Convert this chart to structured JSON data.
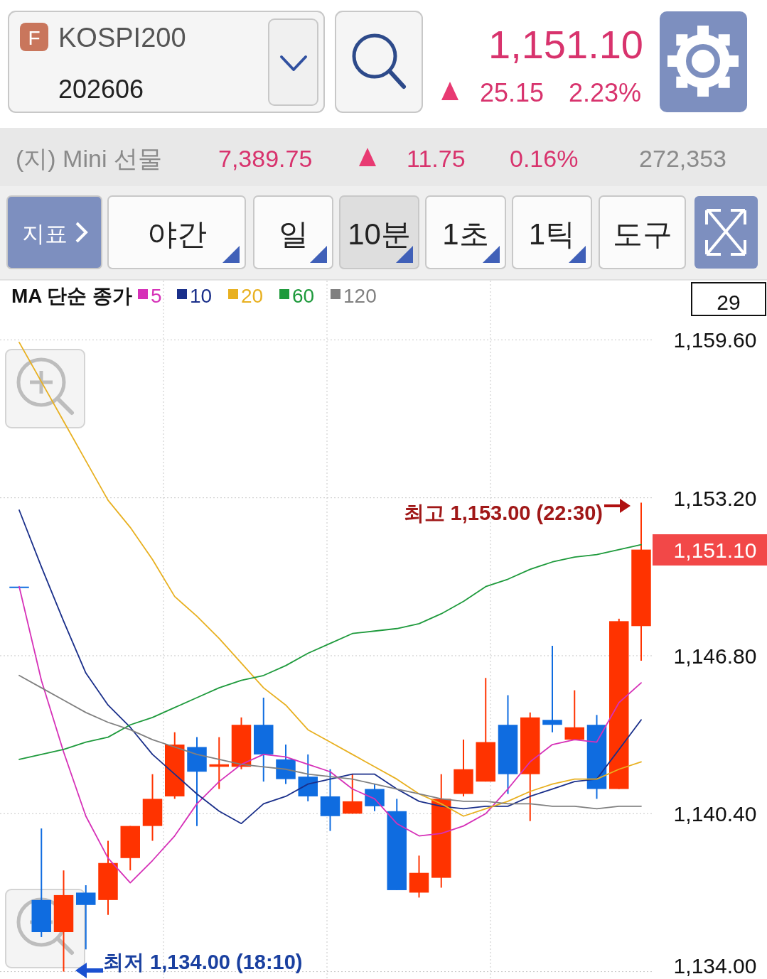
{
  "chart_data": {
    "type": "candlestick",
    "title": "KOSPI200",
    "subtitle": "202606",
    "categories": [
      null,
      null,
      null,
      null,
      null,
      null,
      null,
      null,
      null,
      null,
      null,
      null,
      null,
      null,
      null,
      null,
      null,
      null,
      null,
      null,
      null,
      null,
      null,
      null,
      null,
      null,
      null,
      null,
      null
    ],
    "ohlc": [
      [
        1149.6,
        1149.6,
        1149.6,
        1149.6
      ],
      [
        1136.9,
        1139.8,
        1135.4,
        1135.6
      ],
      [
        1135.6,
        1138.1,
        1134.0,
        1137.1
      ],
      [
        1137.2,
        1137.5,
        1134.9,
        1136.7
      ],
      [
        1136.9,
        1139.3,
        1136.3,
        1138.4
      ],
      [
        1138.6,
        1139.9,
        1138.1,
        1139.9
      ],
      [
        1139.9,
        1142.0,
        1139.3,
        1141.0
      ],
      [
        1141.1,
        1143.7,
        1141.0,
        1143.2
      ],
      [
        1143.1,
        1143.5,
        1139.9,
        1142.1
      ],
      [
        1142.3,
        1143.5,
        1141.4,
        1142.4
      ],
      [
        1142.3,
        1144.3,
        1142.2,
        1144.0
      ],
      [
        1144.0,
        1145.1,
        1141.7,
        1142.8
      ],
      [
        1142.6,
        1143.2,
        1141.6,
        1141.8
      ],
      [
        1141.9,
        1142.8,
        1140.9,
        1141.1
      ],
      [
        1141.1,
        1142.2,
        1139.7,
        1140.3
      ],
      [
        1140.4,
        1142.0,
        1140.4,
        1140.9
      ],
      [
        1141.4,
        1141.6,
        1140.5,
        1140.7
      ],
      [
        1140.5,
        1141.0,
        1137.3,
        1137.3
      ],
      [
        1137.2,
        1138.7,
        1137.0,
        1138.0
      ],
      [
        1137.8,
        1142.0,
        1137.4,
        1141.0
      ],
      [
        1141.2,
        1143.4,
        1141.1,
        1142.2
      ],
      [
        1141.7,
        1145.9,
        1141.7,
        1143.3
      ],
      [
        1144.0,
        1145.2,
        1141.2,
        1142.0
      ],
      [
        1142.0,
        1144.5,
        1140.1,
        1144.3
      ],
      [
        1144.2,
        1147.2,
        1143.7,
        1144.0
      ],
      [
        1143.4,
        1145.4,
        1143.4,
        1143.9
      ],
      [
        1144.0,
        1144.4,
        1141.0,
        1141.4
      ],
      [
        1141.4,
        1148.3,
        1141.4,
        1148.2
      ],
      [
        1148.0,
        1153.0,
        1146.6,
        1151.1
      ]
    ],
    "colors": [
      "#0f6ce0",
      "#0f6ce0",
      "#ff3300",
      "#0f6ce0",
      "#ff3300",
      "#ff3300",
      "#ff3300",
      "#ff3300",
      "#0f6ce0",
      "#ff3300",
      "#ff3300",
      "#0f6ce0",
      "#0f6ce0",
      "#0f6ce0",
      "#0f6ce0",
      "#ff3300",
      "#0f6ce0",
      "#0f6ce0",
      "#ff3300",
      "#ff3300",
      "#ff3300",
      "#ff3300",
      "#0f6ce0",
      "#ff3300",
      "#0f6ce0",
      "#ff3300",
      "#0f6ce0",
      "#ff3300",
      "#ff3300"
    ],
    "series": [
      {
        "type": "line",
        "name": "5",
        "color": "#d631b8",
        "values": [
          1149.6,
          1145.8,
          1142.9,
          1140.3,
          1138.6,
          1137.6,
          1138.5,
          1139.5,
          1140.8,
          1141.7,
          1142.4,
          1142.8,
          1142.7,
          1142.4,
          1142.1,
          1141.4,
          1141.0,
          1140.0,
          1139.5,
          1139.6,
          1139.9,
          1140.4,
          1141.4,
          1142.5,
          1143.2,
          1143.4,
          1143.3,
          1144.9,
          1145.7
        ]
      },
      {
        "type": "line",
        "name": "10",
        "color": "#1a2f8a",
        "values": [
          1152.7,
          1150.4,
          1148.2,
          1146.1,
          1144.8,
          1143.9,
          1142.8,
          1142.0,
          1141.2,
          1140.5,
          1140.0,
          1140.8,
          1141.1,
          1141.6,
          1141.8,
          1142.0,
          1142.0,
          1141.4,
          1140.9,
          1140.7,
          1140.6,
          1140.7,
          1140.7,
          1141.1,
          1141.4,
          1141.7,
          1141.8,
          1143.0,
          1144.2
        ]
      },
      {
        "type": "line",
        "name": "20",
        "color": "#e8b020",
        "values": [
          1159.5,
          1157.9,
          1156.3,
          1154.7,
          1153.1,
          1152.0,
          1150.7,
          1149.2,
          1148.4,
          1147.5,
          1146.5,
          1145.5,
          1144.8,
          1143.8,
          1143.3,
          1142.8,
          1142.3,
          1141.8,
          1141.2,
          1140.8,
          1140.3,
          1140.6,
          1140.9,
          1141.3,
          1141.6,
          1141.8,
          1141.8,
          1142.2,
          1142.5
        ]
      },
      {
        "type": "line",
        "name": "60",
        "color": "#1e9a3c",
        "values": [
          1142.6,
          1142.8,
          1143.0,
          1143.3,
          1143.5,
          1144.0,
          1144.3,
          1144.7,
          1145.1,
          1145.5,
          1145.8,
          1146.0,
          1146.4,
          1146.9,
          1147.3,
          1147.7,
          1147.8,
          1147.9,
          1148.1,
          1148.5,
          1149.0,
          1149.6,
          1149.9,
          1150.3,
          1150.6,
          1150.8,
          1150.9,
          1151.1,
          1151.3
        ]
      },
      {
        "type": "line",
        "name": "120",
        "color": "#808080",
        "values": [
          1146.0,
          1145.5,
          1145.0,
          1144.5,
          1144.1,
          1143.8,
          1143.4,
          1143.1,
          1142.8,
          1142.6,
          1142.4,
          1142.3,
          1142.2,
          1142.0,
          1141.9,
          1141.8,
          1141.6,
          1141.4,
          1141.2,
          1141.0,
          1140.9,
          1140.9,
          1140.8,
          1140.8,
          1140.7,
          1140.7,
          1140.6,
          1140.7,
          1140.7
        ]
      }
    ],
    "legend": "top left",
    "legend_title": "MA 단순 종가",
    "ylim": [
      1133.7,
      1162.0
    ],
    "yticks": [
      {
        "value": 1134.0,
        "label": "1,134.00"
      },
      {
        "value": 1140.4,
        "label": "1,140.40"
      },
      {
        "value": 1146.8,
        "label": "1,146.80"
      },
      {
        "value": 1153.2,
        "label": "1,153.20"
      },
      {
        "value": 1159.6,
        "label": "1,159.60"
      }
    ],
    "grid": "y",
    "annotations": [
      "F",
      "1,151.10",
      "25.15",
      "2.23%",
      "(지) Mini 선물",
      "7,389.75",
      "11.75",
      "0.16%",
      "272,353",
      "지표",
      "야간",
      "일",
      "10분",
      "1초",
      "1틱",
      "도구",
      "29",
      "최고 1,153.00 (22:30)",
      "최저 1,134.00 (18:10)",
      "1,151.10"
    ]
  }
}
